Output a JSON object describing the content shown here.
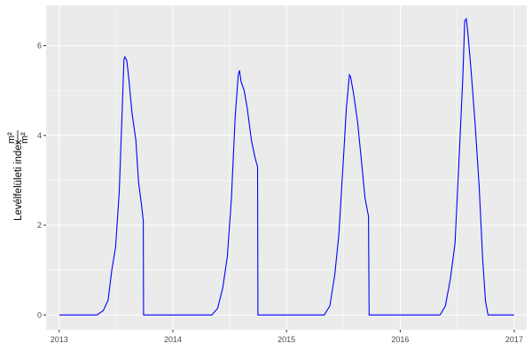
{
  "chart_data": {
    "type": "line",
    "title": "",
    "xlabel": "",
    "ylabel": "Levélfelületi index",
    "ylabel_unit_num": "m²",
    "ylabel_unit_den": "m²",
    "xlim": [
      "2012-11-20",
      "2017-02-10"
    ],
    "ylim": [
      -0.33,
      6.9
    ],
    "x_ticks": [
      "2013",
      "2014",
      "2015",
      "2016",
      "2017"
    ],
    "y_ticks": [
      0,
      2,
      4,
      6
    ],
    "grid": true,
    "line_color": "#0000FF",
    "panel_color": "#EBEBEB",
    "series": [
      {
        "x": [
          "2013-01-01",
          "2013-05-02",
          "2013-05-23",
          "2013-06-07",
          "2013-06-19",
          "2013-07-01",
          "2013-07-13",
          "2013-07-22",
          "2013-07-28",
          "2013-07-31",
          "2013-08-06",
          "2013-08-12",
          "2013-08-23",
          "2013-09-04",
          "2013-09-13",
          "2013-09-22",
          "2013-09-28",
          "2013-09-29",
          "2013-10-01",
          "2014-05-06",
          "2014-05-25",
          "2014-06-10",
          "2014-06-25",
          "2014-07-08",
          "2014-07-20",
          "2014-07-30",
          "2014-08-03",
          "2014-08-08",
          "2014-08-18",
          "2014-08-28",
          "2014-09-10",
          "2014-09-22",
          "2014-09-30",
          "2014-10-01",
          "2015-05-02",
          "2015-05-20",
          "2015-06-05",
          "2015-06-18",
          "2015-07-01",
          "2015-07-12",
          "2015-07-22",
          "2015-07-26",
          "2015-08-05",
          "2015-08-17",
          "2015-08-30",
          "2015-09-10",
          "2015-09-21",
          "2015-09-23",
          "2016-05-08",
          "2016-05-25",
          "2016-06-10",
          "2016-06-25",
          "2016-07-08",
          "2016-07-20",
          "2016-07-26",
          "2016-07-31",
          "2016-08-05",
          "2016-08-15",
          "2016-08-28",
          "2016-09-10",
          "2016-09-22",
          "2016-10-01",
          "2016-10-09",
          "2017-01-01"
        ],
        "y": [
          0,
          0,
          0.1,
          0.33,
          1.0,
          1.5,
          2.75,
          4.5,
          5.7,
          5.75,
          5.67,
          5.3,
          4.5,
          3.9,
          2.95,
          2.47,
          2.1,
          0,
          0,
          0,
          0.15,
          0.6,
          1.3,
          2.6,
          4.4,
          5.35,
          5.45,
          5.2,
          5.0,
          4.6,
          3.9,
          3.5,
          3.3,
          0,
          0,
          0.2,
          0.9,
          1.8,
          3.3,
          4.6,
          5.35,
          5.3,
          4.9,
          4.3,
          3.4,
          2.6,
          2.2,
          0,
          0,
          0.2,
          0.8,
          1.6,
          3.5,
          5.3,
          6.55,
          6.6,
          6.3,
          5.5,
          4.3,
          2.9,
          1.2,
          0.3,
          0,
          0
        ]
      }
    ]
  }
}
